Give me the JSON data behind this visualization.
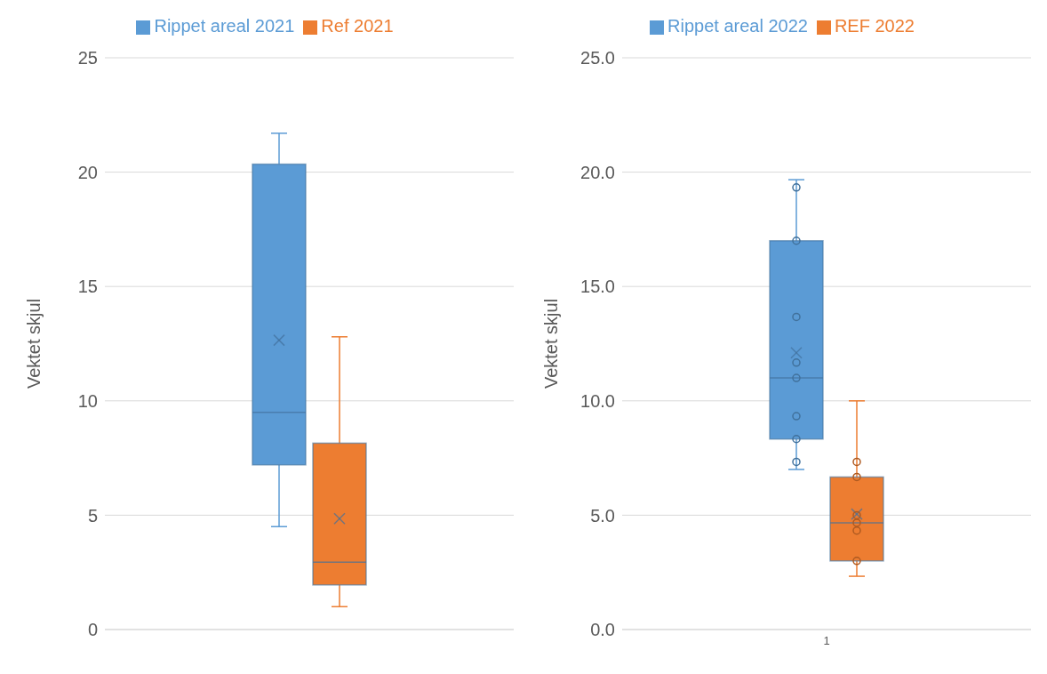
{
  "chart_data": [
    {
      "type": "box",
      "ylabel": "Vektet skjul",
      "categories": [
        null
      ],
      "ylim": [
        0,
        25
      ],
      "yticks": [
        0,
        5,
        10,
        15,
        20,
        25
      ],
      "grid": "y",
      "legend": "top",
      "series": [
        {
          "name": "Rippet areal 2021",
          "color": "#5b9bd5",
          "boxes": [
            {
              "low": 4.5,
              "q1": 7.2,
              "median": 9.5,
              "q3": 20.35,
              "high": 21.7,
              "mean": 12.65
            }
          ]
        },
        {
          "name": "Ref 2021",
          "color": "#ed7d31",
          "boxes": [
            {
              "low": 1.0,
              "q1": 1.95,
              "median": 2.95,
              "q3": 8.15,
              "high": 12.8,
              "mean": 4.85
            }
          ]
        }
      ]
    },
    {
      "type": "box",
      "ylabel": "Vektet skjul",
      "categories": [
        "1"
      ],
      "ylim": [
        0,
        25
      ],
      "yticks": [
        {
          "value": 0,
          "label": "0.0"
        },
        {
          "value": 5,
          "label": "5.0"
        },
        {
          "value": 10,
          "label": "10.0"
        },
        {
          "value": 15,
          "label": "15.0"
        },
        {
          "value": 20,
          "label": "20.0"
        },
        {
          "value": 25,
          "label": "25.0"
        }
      ],
      "grid": "y",
      "legend": "top",
      "series": [
        {
          "name": "Rippet areal 2022",
          "color": "#5b9bd5",
          "boxes": [
            {
              "low": 7.0,
              "q1": 8.33,
              "median": 11.0,
              "q3": 17.0,
              "high": 19.67,
              "mean": 12.1
            }
          ]
        },
        {
          "name": "REF 2022",
          "color": "#ed7d31",
          "boxes": [
            {
              "low": 2.33,
              "q1": 3.0,
              "median": 4.67,
              "q3": 6.67,
              "high": 10.0,
              "mean": 5.05
            }
          ]
        },
        {
          "type": "scatter",
          "color": "#41719c",
          "marker": "circle",
          "x": [
            "1",
            "1",
            "1",
            "1",
            "1",
            "1",
            "1",
            "1"
          ],
          "values": [
            19.33,
            17.0,
            13.67,
            11.67,
            11.0,
            9.33,
            8.33,
            7.33
          ]
        },
        {
          "type": "scatter",
          "color": "#ae5a21",
          "marker": "circle",
          "x": [
            "1",
            "1",
            "1",
            "1",
            "1",
            "1"
          ],
          "values": [
            7.33,
            6.67,
            5.0,
            4.67,
            4.33,
            3.0
          ]
        }
      ]
    }
  ]
}
